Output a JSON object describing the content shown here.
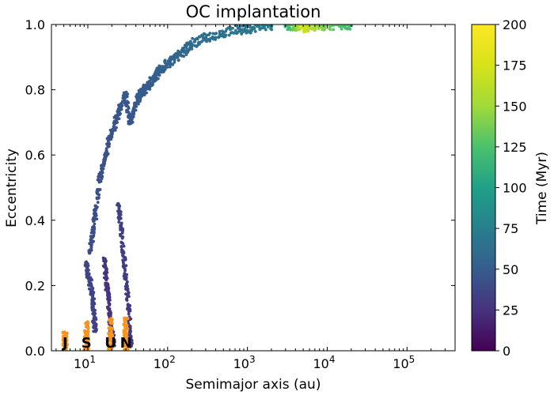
{
  "chart_data": {
    "type": "scatter",
    "title": "OC implantation",
    "xlabel": "Semimajor axis (au)",
    "ylabel": "Eccentricity",
    "xscale": "log",
    "xlim": [
      3.5,
      400000
    ],
    "ylim": [
      0.0,
      1.0
    ],
    "x_ticks": [
      {
        "value": 10,
        "label": "10¹",
        "base": "10",
        "exp": "1"
      },
      {
        "value": 100,
        "label": "10²",
        "base": "10",
        "exp": "2"
      },
      {
        "value": 1000,
        "label": "10³",
        "base": "10",
        "exp": "3"
      },
      {
        "value": 10000,
        "label": "10⁴",
        "base": "10",
        "exp": "4"
      },
      {
        "value": 100000,
        "label": "10⁵",
        "base": "10",
        "exp": "5"
      }
    ],
    "y_ticks": [
      "0.0",
      "0.2",
      "0.4",
      "0.6",
      "0.8",
      "1.0"
    ],
    "colorbar": {
      "label": "Time (Myr)",
      "min": 0,
      "max": 200,
      "ticks": [
        "0",
        "25",
        "50",
        "75",
        "100",
        "125",
        "150",
        "175",
        "200"
      ],
      "colormap": "viridis"
    },
    "planets": [
      {
        "name": "J",
        "a": 5.2,
        "e_max": 0.06
      },
      {
        "name": "S",
        "a": 9.6,
        "e_max": 0.09
      },
      {
        "name": "U",
        "a": 19.2,
        "e_max": 0.1
      },
      {
        "name": "N",
        "a": 30.1,
        "e_max": 0.1
      }
    ],
    "planet_color": "#f7941d",
    "series": [
      {
        "name": "track-near-saturn",
        "points": [
          [
            9.5,
            0.27,
            38
          ],
          [
            10,
            0.23,
            37
          ],
          [
            11,
            0.2,
            36
          ],
          [
            11.5,
            0.15,
            35
          ],
          [
            12,
            0.1,
            34
          ],
          [
            12.5,
            0.06,
            33
          ]
        ]
      },
      {
        "name": "main-track",
        "points": [
          [
            10.5,
            0.3,
            40
          ],
          [
            11.5,
            0.35,
            41
          ],
          [
            12.5,
            0.42,
            42
          ],
          [
            14,
            0.52,
            43
          ],
          [
            16,
            0.58,
            44
          ],
          [
            18,
            0.63,
            44
          ],
          [
            20,
            0.67,
            45
          ],
          [
            23,
            0.71,
            46
          ],
          [
            26,
            0.75,
            47
          ],
          [
            30,
            0.78,
            48
          ],
          [
            34,
            0.7,
            47
          ],
          [
            38,
            0.74,
            48
          ],
          [
            44,
            0.78,
            49
          ],
          [
            52,
            0.8,
            50
          ],
          [
            60,
            0.82,
            51
          ],
          [
            70,
            0.84,
            52
          ],
          [
            80,
            0.86,
            53
          ],
          [
            100,
            0.88,
            55
          ],
          [
            130,
            0.9,
            57
          ],
          [
            160,
            0.92,
            59
          ],
          [
            200,
            0.94,
            61
          ],
          [
            300,
            0.96,
            63
          ],
          [
            500,
            0.975,
            65
          ],
          [
            800,
            0.985,
            67
          ],
          [
            1200,
            0.99,
            70
          ],
          [
            2000,
            0.995,
            75
          ]
        ]
      },
      {
        "name": "track-near-uranus",
        "points": [
          [
            16,
            0.28,
            28
          ],
          [
            17,
            0.22,
            27
          ],
          [
            18,
            0.16,
            26
          ],
          [
            19,
            0.1,
            25
          ],
          [
            20,
            0.05,
            24
          ],
          [
            21,
            0.02,
            23
          ]
        ]
      },
      {
        "name": "track-near-neptune",
        "points": [
          [
            24,
            0.45,
            34
          ],
          [
            26,
            0.38,
            33
          ],
          [
            28,
            0.3,
            32
          ],
          [
            30,
            0.22,
            31
          ],
          [
            32,
            0.14,
            30
          ],
          [
            34,
            0.06,
            29
          ],
          [
            35,
            0.02,
            28
          ]
        ]
      },
      {
        "name": "outer-scattered",
        "points": [
          [
            3000,
            0.998,
            110
          ],
          [
            4000,
            0.997,
            140
          ],
          [
            5000,
            0.99,
            175
          ],
          [
            6000,
            0.996,
            160
          ],
          [
            8000,
            0.998,
            145
          ],
          [
            12000,
            0.999,
            130
          ],
          [
            20000,
            0.999,
            120
          ]
        ]
      }
    ],
    "color_ticks_note": "vertical colorbar on the right"
  }
}
